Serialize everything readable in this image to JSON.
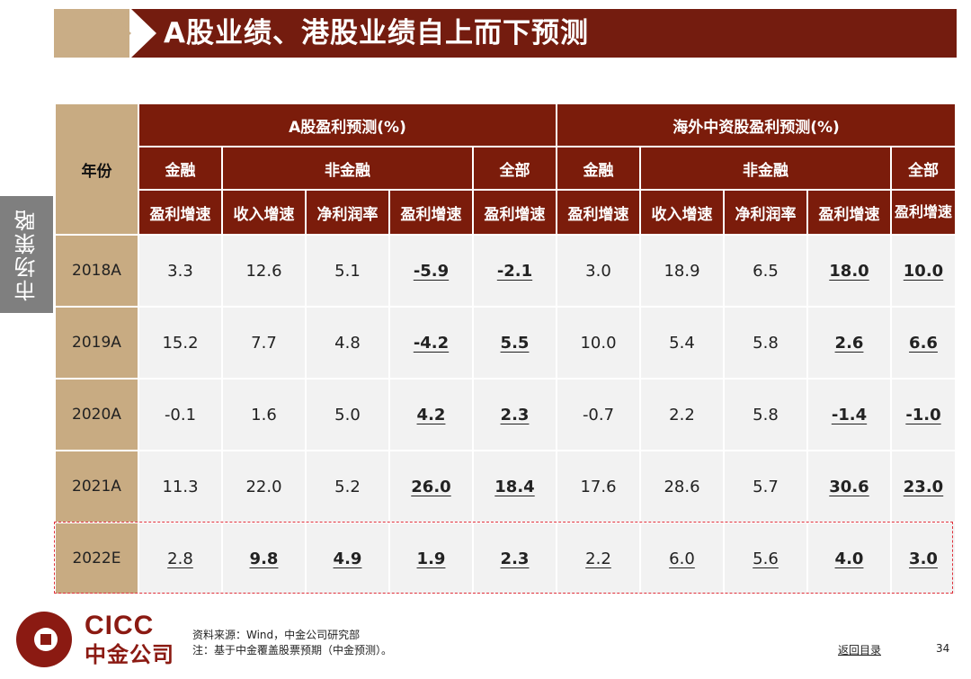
{
  "title": "A股业绩、港股业绩自上而下预测",
  "side_tab": "市场策略",
  "table": {
    "year_header": "年份",
    "group_a": "A股盈利预测(%)",
    "group_h": "海外中资股盈利预测(%)",
    "sub_a": {
      "fin": "金融",
      "nonfin": "非金融",
      "all": "全部"
    },
    "sub_h": {
      "fin": "金融",
      "nonfin": "非金融",
      "all": "全部"
    },
    "metrics": [
      "盈利增速",
      "收入增速",
      "净利润率",
      "盈利增速",
      "盈利增速",
      "盈利增速",
      "收入增速",
      "净利润率",
      "盈利增速",
      "盈利增速"
    ],
    "rows": [
      {
        "year": "2018A",
        "values": [
          "3.3",
          "12.6",
          "5.1",
          "-5.9",
          "-2.1",
          "3.0",
          "18.9",
          "6.5",
          "18.0",
          "10.0"
        ]
      },
      {
        "year": "2019A",
        "values": [
          "15.2",
          "7.7",
          "4.8",
          "-4.2",
          "5.5",
          "10.0",
          "5.4",
          "5.8",
          "2.6",
          "6.6"
        ]
      },
      {
        "year": "2020A",
        "values": [
          "-0.1",
          "1.6",
          "5.0",
          "4.2",
          "2.3",
          "-0.7",
          "2.2",
          "5.8",
          "-1.4",
          "-1.0"
        ]
      },
      {
        "year": "2021A",
        "values": [
          "11.3",
          "22.0",
          "5.2",
          "26.0",
          "18.4",
          "17.6",
          "28.6",
          "5.7",
          "30.6",
          "23.0"
        ]
      },
      {
        "year": "2022E",
        "values": [
          "2.8",
          "9.8",
          "4.9",
          "1.9",
          "2.3",
          "2.2",
          "6.0",
          "5.6",
          "4.0",
          "3.0"
        ]
      }
    ]
  },
  "footer": {
    "logo_en": "CICC",
    "logo_cn": "中金公司",
    "source": "资料来源：Wind，中金公司研究部",
    "note": "注：基于中金覆盖股票预期（中金预测）。",
    "back_link": "返回目录",
    "page_number": "34"
  },
  "colors": {
    "header_red": "#7b1c0b",
    "tan": "#c8ab82",
    "cell_gray": "#f2f2f2",
    "highlight_dashed": "#e0303b"
  }
}
